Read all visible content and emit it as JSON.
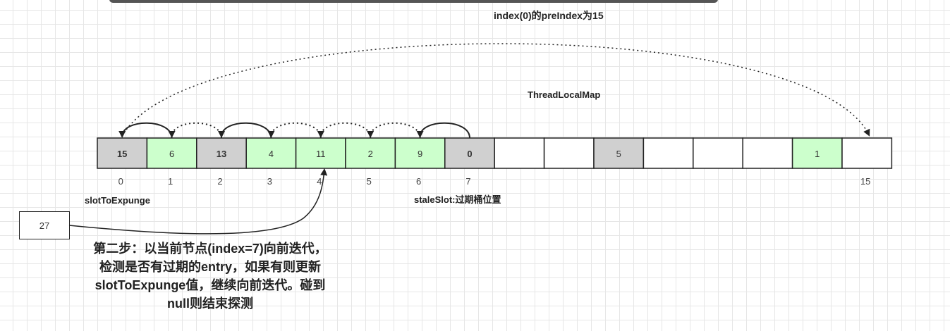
{
  "title": "index(0)的preIndex为15",
  "map_label": "ThreadLocalMap",
  "cells": [
    {
      "value": "15",
      "state": "stale"
    },
    {
      "value": "6",
      "state": "valid"
    },
    {
      "value": "13",
      "state": "stale"
    },
    {
      "value": "4",
      "state": "valid"
    },
    {
      "value": "11",
      "state": "valid"
    },
    {
      "value": "2",
      "state": "valid"
    },
    {
      "value": "9",
      "state": "valid"
    },
    {
      "value": "0",
      "state": "stale"
    },
    {
      "value": "",
      "state": "empty"
    },
    {
      "value": "",
      "state": "empty"
    },
    {
      "value": "5",
      "state": "stale"
    },
    {
      "value": "",
      "state": "empty"
    },
    {
      "value": "",
      "state": "empty"
    },
    {
      "value": "",
      "state": "empty"
    },
    {
      "value": "1",
      "state": "valid"
    },
    {
      "value": "",
      "state": "empty"
    }
  ],
  "index_labels": {
    "0": "0",
    "1": "1",
    "2": "2",
    "3": "3",
    "4": "4",
    "5": "5",
    "6": "6",
    "7": "7",
    "15": "15"
  },
  "slot_to_expunge_label": "slotToExpunge",
  "stale_slot_label": "staleSlot:过期桶位置",
  "new_entry": "27",
  "step_text": "第二步：以当前节点(index=7)向前迭代，检测是否有过期的entry，如果有则更新slotToExpunge值，继续向前迭代。碰到null则结束探测",
  "colors": {
    "stale": "#d0d0d0",
    "valid": "#ccffcc",
    "empty": "#ffffff"
  }
}
